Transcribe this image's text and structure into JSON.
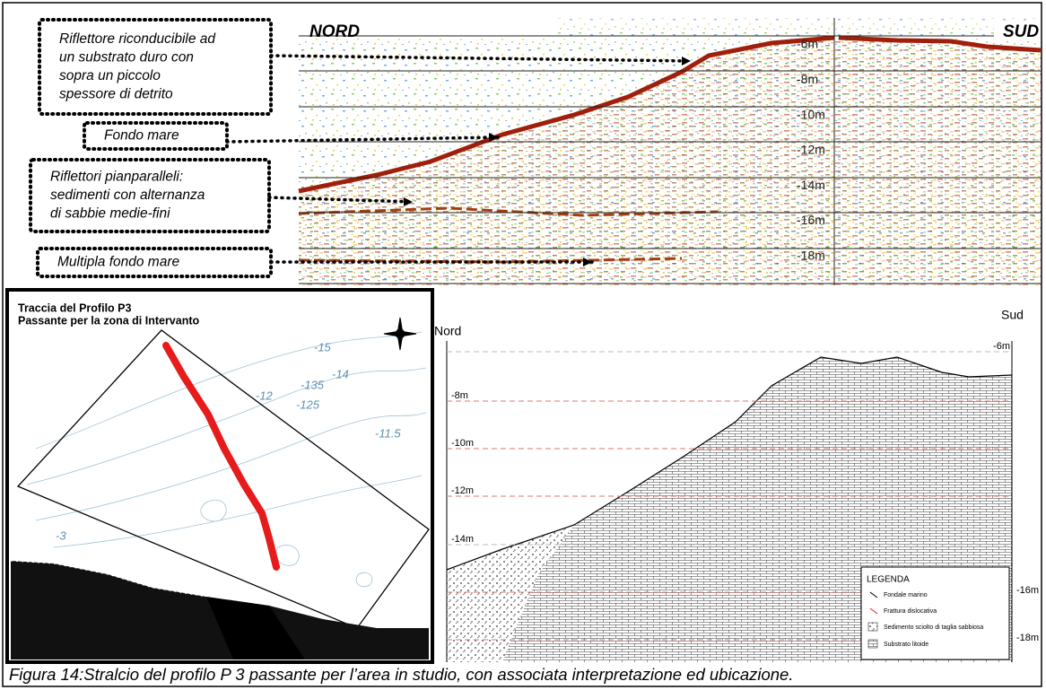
{
  "seismic": {
    "north": "NORD",
    "south": "SUD",
    "depths": [
      "-6m",
      "-8m",
      "-10m",
      "-12m",
      "-14m",
      "-16m",
      "-18m"
    ]
  },
  "callouts": [
    {
      "lines": [
        "Riflettore riconducibile ad",
        "un substrato duro con",
        "sopra un piccolo",
        "spessore di detrito"
      ]
    },
    {
      "lines": [
        "Fondo mare"
      ]
    },
    {
      "lines": [
        "Riflettori pianparalleli:",
        "sedimenti con alternanza",
        "di sabbie medie-fini"
      ]
    },
    {
      "lines": [
        "Multipla fondo mare"
      ]
    }
  ],
  "map": {
    "title": [
      "Traccia del Profilo P3",
      "Passante per la zona di Intervanto"
    ],
    "contours": [
      "-15",
      "-14",
      "-135",
      "-125",
      "-12",
      "-11.5",
      "-3"
    ]
  },
  "section": {
    "north": "Nord",
    "south": "Sud",
    "depths": [
      "-6m",
      "-8m",
      "-10m",
      "-12m",
      "-14m",
      "-16m",
      "-18m"
    ],
    "legend": {
      "title": "LEGENDA",
      "items": [
        "Fondale marino",
        "Frattura dislocativa",
        "Sedimento sciolto di taglia sabbiosa",
        "Substrato litoide"
      ]
    }
  },
  "caption": "Figura 14:Stralcio del profilo P 3 passante per l’area in studio, con associata interpretazione ed ubicazione."
}
